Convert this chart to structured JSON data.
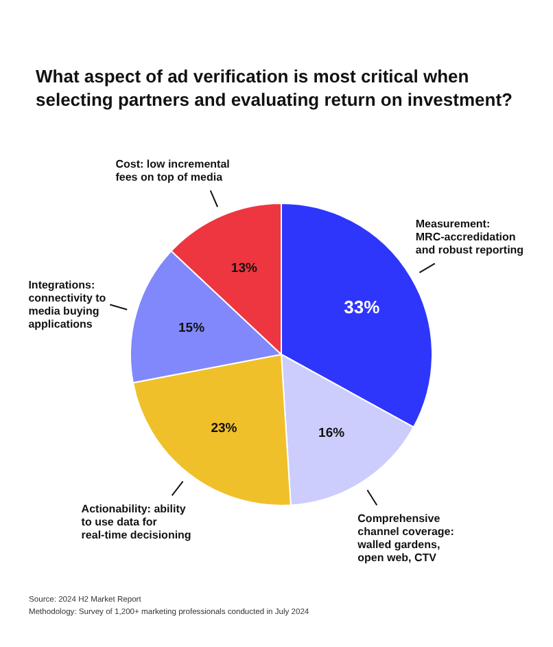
{
  "chart_data": {
    "type": "pie",
    "title": "What aspect of ad verification is most critical when selecting partners and evaluating return on investment?",
    "categories": [
      "Measurement: MRC-accredidation and robust reporting",
      "Comprehensive channel coverage: walled gardens, open web, CTV",
      "Actionability: ability to use data for real-time decisioning",
      "Integrations: connectivity to media buying applications",
      "Cost: low incremental fees on top of media"
    ],
    "values": [
      33,
      16,
      23,
      15,
      13
    ],
    "colors": [
      "#2e36fc",
      "#cccdfc",
      "#f0c02a",
      "#8088fc",
      "#ee3640"
    ],
    "value_labels": [
      "33%",
      "16%",
      "23%",
      "15%",
      "13%"
    ],
    "annotations": [
      "Source: 2024 H2 Market Report",
      "Methodology: Survey of 1,200+ marketing professionals conducted in July 2024"
    ]
  }
}
